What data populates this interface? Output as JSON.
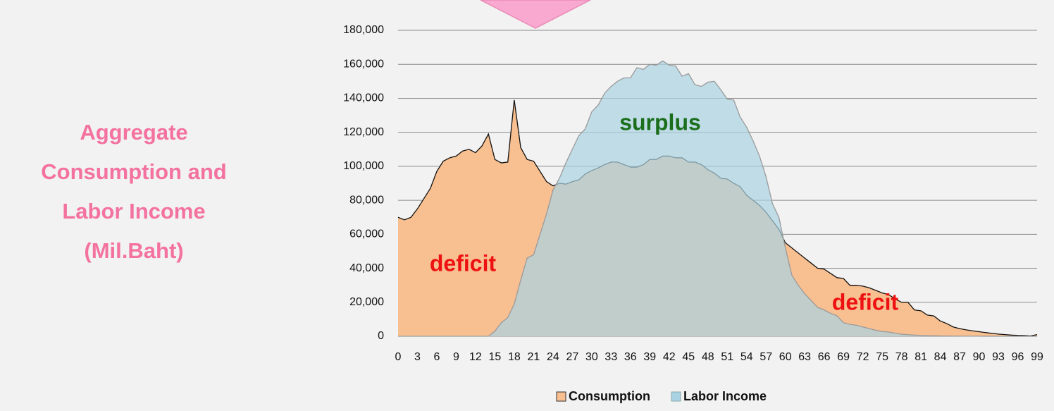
{
  "chart_data": {
    "type": "area",
    "title": "Aggregate Consumption and Labor Income (Mil.Baht)",
    "annotations": [
      "surplus",
      "deficit",
      "deficit"
    ],
    "categories": [
      "0",
      null,
      null,
      "3",
      null,
      null,
      "6",
      null,
      null,
      "9",
      null,
      null,
      "12",
      null,
      null,
      "15",
      null,
      null,
      "18",
      null,
      null,
      "21",
      null,
      null,
      "24",
      null,
      null,
      "27",
      null,
      null,
      "30",
      null,
      null,
      "33",
      null,
      null,
      "36",
      null,
      null,
      "39",
      null,
      null,
      "42",
      null,
      null,
      "45",
      null,
      null,
      "48",
      null,
      null,
      "51",
      null,
      null,
      "54",
      null,
      null,
      "57",
      null,
      null,
      "60",
      null,
      null,
      "63",
      null,
      null,
      "66",
      null,
      null,
      "69",
      null,
      null,
      "72",
      null,
      null,
      "75",
      null,
      null,
      "78",
      null,
      null,
      "81",
      null,
      null,
      "84",
      null,
      null,
      "87",
      null,
      null,
      "90",
      null,
      null,
      "93",
      null,
      null,
      "96",
      null,
      null,
      "99"
    ],
    "series": [
      {
        "name": "Consumption",
        "color": "#f8bf90",
        "line_color": "#111111",
        "values": [
          70000,
          68500,
          70000,
          75000,
          81000,
          87000,
          97000,
          103000,
          105000,
          106000,
          109000,
          110000,
          108000,
          112000,
          119000,
          104000,
          102000,
          102500,
          139000,
          111000,
          104000,
          103000,
          97000,
          91000,
          88500,
          90000,
          89500,
          91000,
          92000,
          95500,
          97500,
          99000,
          101000,
          102500,
          102500,
          101000,
          99500,
          99500,
          101000,
          104000,
          104000,
          106000,
          106000,
          105000,
          105000,
          102500,
          102500,
          101000,
          98000,
          96000,
          93000,
          92500,
          90000,
          88000,
          83000,
          80000,
          77000,
          73000,
          68000,
          63000,
          55000,
          52000,
          49000,
          46000,
          43000,
          40000,
          39500,
          37000,
          34500,
          34000,
          30000,
          30000,
          29500,
          28500,
          27000,
          25500,
          24500,
          22000,
          20000,
          20000,
          15500,
          15000,
          12500,
          12000,
          9000,
          7500,
          5500,
          4500,
          3800,
          3200,
          2700,
          2200,
          1700,
          1300,
          1000,
          700,
          500,
          400,
          200,
          1000
        ]
      },
      {
        "name": "Labor Income",
        "color": "#a9d3e2",
        "line_color": "#9a9a9a",
        "values": [
          0,
          0,
          0,
          0,
          0,
          0,
          0,
          0,
          0,
          0,
          0,
          0,
          0,
          0,
          0,
          3000,
          8000,
          11000,
          19000,
          33000,
          46000,
          48000,
          60000,
          72000,
          86000,
          93000,
          102000,
          110000,
          118000,
          122000,
          132000,
          136000,
          143000,
          147000,
          150000,
          152000,
          152000,
          158000,
          157000,
          160000,
          159500,
          162000,
          159500,
          159000,
          153000,
          154500,
          148000,
          147000,
          149500,
          150000,
          145000,
          139500,
          139000,
          129000,
          123000,
          115000,
          106000,
          94000,
          78000,
          70000,
          52000,
          36000,
          30000,
          25000,
          21000,
          17000,
          15500,
          13500,
          12000,
          8000,
          7000,
          6500,
          5500,
          4500,
          3500,
          2800,
          2500,
          1800,
          1200,
          900,
          700,
          500,
          400,
          300,
          200,
          150,
          100,
          80,
          60,
          50,
          40,
          30,
          20,
          15,
          10,
          5,
          0,
          0,
          0,
          0
        ]
      }
    ],
    "ylim": [
      0,
      180000
    ],
    "yticks": [
      0,
      {
        "value": 20000,
        "label": "20,000"
      },
      {
        "value": 40000,
        "label": "40,000"
      },
      {
        "value": 60000,
        "label": "60,000"
      },
      {
        "value": 80000,
        "label": "80,000"
      },
      {
        "value": 100000,
        "label": "100,000"
      },
      {
        "value": 120000,
        "label": "120,000"
      },
      {
        "value": 140000,
        "label": "140,000"
      },
      {
        "value": 160000,
        "label": "160,000"
      },
      {
        "value": 180000,
        "label": "180,000"
      }
    ],
    "grid": true
  }
}
